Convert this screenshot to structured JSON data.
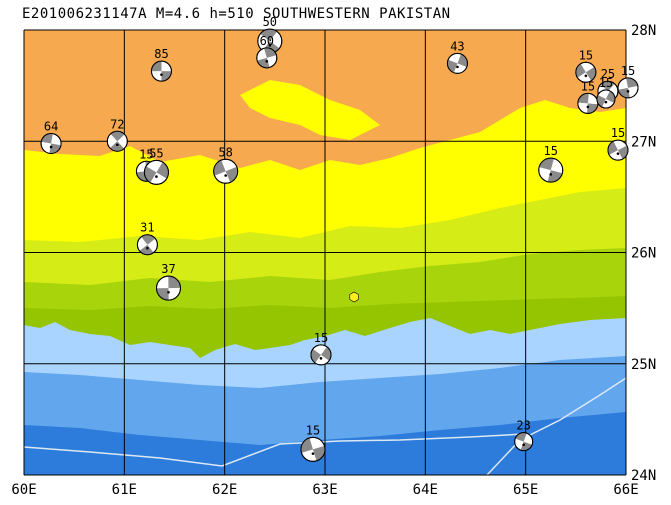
{
  "title": "E201006231147A M=4.6 h=510 SOUTHWESTERN PAKISTAN",
  "map": {
    "lon_range": [
      60,
      66
    ],
    "lat_range": [
      24,
      28
    ],
    "lon_labels": [
      "60E",
      "61E",
      "62E",
      "63E",
      "64E",
      "65E",
      "66E"
    ],
    "lat_labels": [
      "28N",
      "27N",
      "26N",
      "25N",
      "24N"
    ],
    "colors": {
      "highland": "#f6a94f",
      "upland": "#ffff00",
      "midland": "#d6ec17",
      "lowland": "#a8d40b",
      "coast": "#95c400",
      "shallow": "#a9d4ff",
      "mid_ocean": "#62a6ee",
      "deep": "#2d7cdb",
      "grid": "#000000",
      "plate_boundary": "#dbe8f4",
      "event_marker": "#ffee22"
    }
  },
  "mechanisms": [
    {
      "label": "85",
      "lon": 61.37,
      "lat": 27.63,
      "r": 10
    },
    {
      "label": "50",
      "lon": 62.45,
      "lat": 27.9,
      "r": 12
    },
    {
      "label": "60",
      "lon": 62.42,
      "lat": 27.75,
      "r": 10
    },
    {
      "label": "43",
      "lon": 64.32,
      "lat": 27.7,
      "r": 10
    },
    {
      "label": "15",
      "lon": 65.6,
      "lat": 27.62,
      "r": 10
    },
    {
      "label": "15",
      "lon": 65.62,
      "lat": 27.34,
      "r": 10
    },
    {
      "label": "25",
      "lon": 65.82,
      "lat": 27.45,
      "r": 10
    },
    {
      "label": "15",
      "lon": 66.02,
      "lat": 27.48,
      "r": 10
    },
    {
      "label": "15",
      "lon": 65.8,
      "lat": 27.38,
      "r": 9
    },
    {
      "label": "15",
      "lon": 65.92,
      "lat": 26.92,
      "r": 10
    },
    {
      "label": "64",
      "lon": 60.27,
      "lat": 26.98,
      "r": 10
    },
    {
      "label": "72",
      "lon": 60.93,
      "lat": 27.0,
      "r": 10
    },
    {
      "label": "15",
      "lon": 61.22,
      "lat": 26.73,
      "r": 10
    },
    {
      "label": "55",
      "lon": 61.32,
      "lat": 26.72,
      "r": 12
    },
    {
      "label": "58",
      "lon": 62.01,
      "lat": 26.73,
      "r": 12
    },
    {
      "label": "15",
      "lon": 65.25,
      "lat": 26.74,
      "r": 12
    },
    {
      "label": "31",
      "lon": 61.23,
      "lat": 26.07,
      "r": 10
    },
    {
      "label": "37",
      "lon": 61.44,
      "lat": 25.68,
      "r": 12
    },
    {
      "label": "15",
      "lon": 62.96,
      "lat": 25.08,
      "r": 10
    },
    {
      "label": "15",
      "lon": 62.88,
      "lat": 24.23,
      "r": 12
    },
    {
      "label": "23",
      "lon": 64.98,
      "lat": 24.3,
      "r": 9
    }
  ],
  "event_marker": {
    "lon": 63.29,
    "lat": 25.6
  }
}
